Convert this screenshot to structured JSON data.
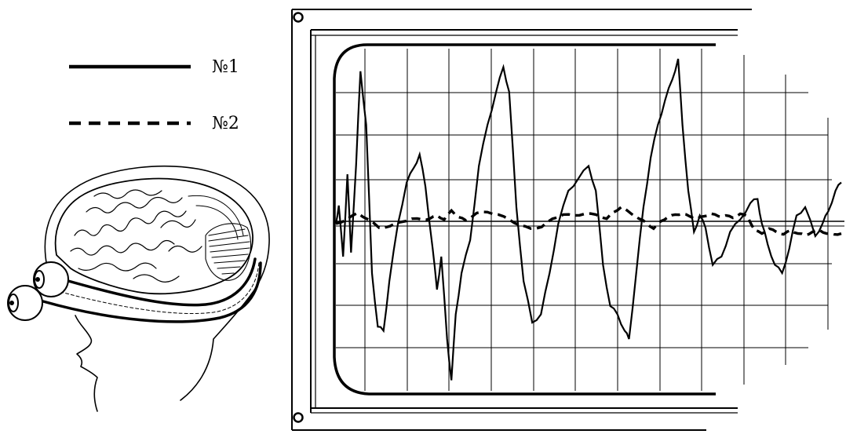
{
  "legend": [
    {
      "label": "№1",
      "style": "solid"
    },
    {
      "label": "№2",
      "style": "dashed"
    }
  ],
  "colors": {
    "ink": "#000000",
    "background": "#ffffff"
  },
  "icons": [
    "head-with-brain-and-eyes-illustration",
    "oscilloscope-screen"
  ],
  "traces": {
    "trace_1": [
      [
        0,
        0
      ],
      [
        0.4,
        2.2
      ],
      [
        1.0,
        -4.0
      ],
      [
        1.6,
        6.0
      ],
      [
        2.1,
        -3.5
      ],
      [
        2.8,
        7.2
      ],
      [
        3.4,
        18.5
      ],
      [
        4.2,
        12.0
      ],
      [
        5.0,
        -6.0
      ],
      [
        5.8,
        -12.5
      ],
      [
        6.6,
        -13.0
      ],
      [
        7.4,
        -7.0
      ],
      [
        8.6,
        0.0
      ],
      [
        9.8,
        5.0
      ],
      [
        10.8,
        6.8
      ],
      [
        11.6,
        8.4
      ],
      [
        12.4,
        4.5
      ],
      [
        13.4,
        -3.0
      ],
      [
        14.0,
        -8.0
      ],
      [
        14.6,
        -4.0
      ],
      [
        15.4,
        -14.0
      ],
      [
        16.0,
        -19.0
      ],
      [
        16.6,
        -11.0
      ],
      [
        17.4,
        -6.0
      ],
      [
        18.6,
        -2.0
      ],
      [
        19.8,
        7.0
      ],
      [
        21.0,
        12.0
      ],
      [
        22.2,
        16.0
      ],
      [
        23.2,
        19.0
      ],
      [
        24.0,
        16.0
      ],
      [
        25.0,
        2.0
      ],
      [
        26.0,
        -7.0
      ],
      [
        27.2,
        -12.0
      ],
      [
        28.4,
        -11.0
      ],
      [
        29.6,
        -6.0
      ],
      [
        30.8,
        0.0
      ],
      [
        32.2,
        4.0
      ],
      [
        33.6,
        5.5
      ],
      [
        35.0,
        7.0
      ],
      [
        36.0,
        4.0
      ],
      [
        37.0,
        -5.0
      ],
      [
        38.0,
        -10.0
      ],
      [
        39.0,
        -11.0
      ],
      [
        40.0,
        -13.0
      ],
      [
        40.6,
        -14.0
      ],
      [
        41.6,
        -6.0
      ],
      [
        42.6,
        2.0
      ],
      [
        43.6,
        8.0
      ],
      [
        44.6,
        12.0
      ],
      [
        45.6,
        15.0
      ],
      [
        46.6,
        17.5
      ],
      [
        47.4,
        20.0
      ],
      [
        48.0,
        12.0
      ],
      [
        48.8,
        4.0
      ],
      [
        49.6,
        -1.0
      ],
      [
        50.4,
        1.0
      ],
      [
        51.2,
        -0.5
      ],
      [
        52.2,
        -5.0
      ],
      [
        53.4,
        -4.0
      ],
      [
        54.6,
        -1.0
      ],
      [
        56.0,
        0.5
      ],
      [
        57.4,
        2.5
      ],
      [
        58.4,
        3.0
      ],
      [
        59.0,
        0.0
      ],
      [
        59.8,
        -2.5
      ],
      [
        60.8,
        -5.0
      ],
      [
        61.8,
        -6.0
      ],
      [
        62.8,
        -3.0
      ],
      [
        63.8,
        1.0
      ],
      [
        65.0,
        2.0
      ],
      [
        66.4,
        -1.5
      ],
      [
        67.4,
        0.0
      ],
      [
        68.2,
        1.5
      ],
      [
        69.2,
        4.0
      ],
      [
        70.0,
        5.0
      ]
    ],
    "trace_2": [
      [
        0,
        0
      ],
      [
        1.5,
        0.5
      ],
      [
        3.0,
        1.3
      ],
      [
        4.5,
        0.5
      ],
      [
        6.0,
        -0.5
      ],
      [
        7.5,
        -0.3
      ],
      [
        9.0,
        0.2
      ],
      [
        10.5,
        0.6
      ],
      [
        12.0,
        0.5
      ],
      [
        13.0,
        0.6
      ],
      [
        14.0,
        1.0
      ],
      [
        15.0,
        0.5
      ],
      [
        16.0,
        1.6
      ],
      [
        17.0,
        0.8
      ],
      [
        18.0,
        0.4
      ],
      [
        19.5,
        1.3
      ],
      [
        21.0,
        1.4
      ],
      [
        22.5,
        1.1
      ],
      [
        24.0,
        0.5
      ],
      [
        25.5,
        -0.2
      ],
      [
        27.0,
        -0.6
      ],
      [
        28.5,
        -0.4
      ],
      [
        30.0,
        0.6
      ],
      [
        31.5,
        1.1
      ],
      [
        33.0,
        1.0
      ],
      [
        34.5,
        1.2
      ],
      [
        36.0,
        1.1
      ],
      [
        37.5,
        0.6
      ],
      [
        38.5,
        1.4
      ],
      [
        39.5,
        2.0
      ],
      [
        40.5,
        1.5
      ],
      [
        42.0,
        0.6
      ],
      [
        43.0,
        0.1
      ],
      [
        44.0,
        -0.6
      ],
      [
        45.0,
        0.3
      ],
      [
        46.0,
        0.8
      ],
      [
        47.0,
        1.1
      ],
      [
        48.0,
        1.2
      ],
      [
        49.0,
        0.9
      ],
      [
        50.0,
        0.6
      ],
      [
        51.0,
        0.9
      ],
      [
        52.0,
        1.2
      ],
      [
        53.0,
        0.9
      ],
      [
        54.0,
        1.0
      ],
      [
        55.0,
        0.7
      ],
      [
        56.0,
        1.2
      ],
      [
        57.0,
        0.9
      ],
      [
        58.0,
        -0.8
      ],
      [
        59.0,
        -1.2
      ],
      [
        60.0,
        -0.6
      ],
      [
        61.0,
        -1.0
      ],
      [
        62.0,
        -1.3
      ],
      [
        63.0,
        -0.8
      ],
      [
        64.0,
        -1.2
      ],
      [
        65.0,
        -1.4
      ],
      [
        66.0,
        -1.0
      ],
      [
        67.0,
        -0.8
      ],
      [
        68.0,
        -1.2
      ],
      [
        69.0,
        -1.3
      ],
      [
        70.0,
        -1.2
      ]
    ]
  }
}
